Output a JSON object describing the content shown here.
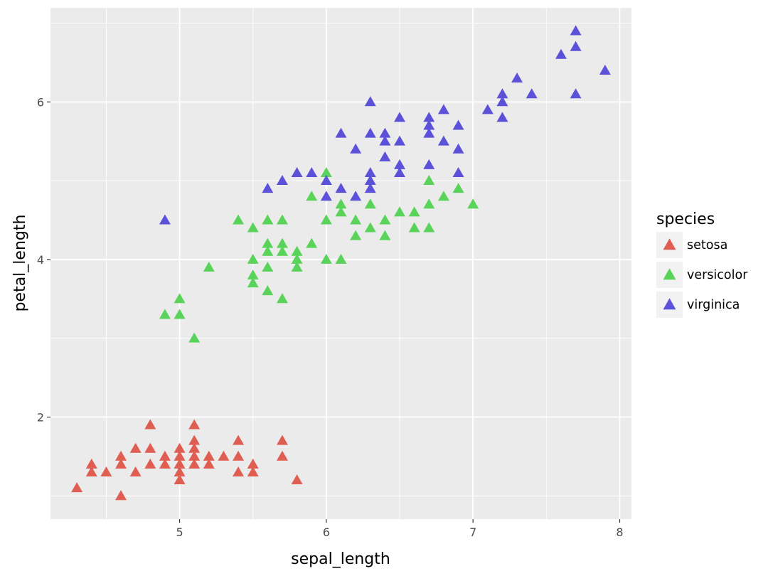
{
  "chart_data": {
    "type": "scatter",
    "xlabel": "sepal_length",
    "ylabel": "petal_length",
    "xlim": [
      4.12,
      8.08
    ],
    "ylim": [
      0.705,
      7.195
    ],
    "x_ticks": [
      5,
      6,
      7,
      8
    ],
    "y_ticks": [
      2,
      4,
      6
    ],
    "x_tick_labels": [
      "5",
      "6",
      "7",
      "8"
    ],
    "y_tick_labels": [
      "2",
      "4",
      "6"
    ],
    "grid": true,
    "marker": "triangle",
    "legend": {
      "title": "species",
      "placement": "right"
    },
    "series": [
      {
        "name": "setosa",
        "color": "#e05d52",
        "points": [
          [
            4.3,
            1.1
          ],
          [
            4.4,
            1.3
          ],
          [
            4.4,
            1.4
          ],
          [
            4.5,
            1.3
          ],
          [
            4.6,
            1.0
          ],
          [
            4.6,
            1.4
          ],
          [
            4.6,
            1.5
          ],
          [
            4.7,
            1.3
          ],
          [
            4.7,
            1.6
          ],
          [
            4.8,
            1.4
          ],
          [
            4.8,
            1.6
          ],
          [
            4.8,
            1.9
          ],
          [
            4.9,
            1.4
          ],
          [
            4.9,
            1.5
          ],
          [
            5.0,
            1.2
          ],
          [
            5.0,
            1.3
          ],
          [
            5.0,
            1.4
          ],
          [
            5.0,
            1.5
          ],
          [
            5.0,
            1.6
          ],
          [
            5.1,
            1.4
          ],
          [
            5.1,
            1.5
          ],
          [
            5.1,
            1.6
          ],
          [
            5.1,
            1.7
          ],
          [
            5.1,
            1.9
          ],
          [
            5.2,
            1.4
          ],
          [
            5.2,
            1.5
          ],
          [
            5.3,
            1.5
          ],
          [
            5.4,
            1.3
          ],
          [
            5.4,
            1.5
          ],
          [
            5.4,
            1.7
          ],
          [
            5.5,
            1.3
          ],
          [
            5.5,
            1.4
          ],
          [
            5.7,
            1.5
          ],
          [
            5.7,
            1.7
          ],
          [
            5.8,
            1.2
          ]
        ]
      },
      {
        "name": "versicolor",
        "color": "#5ad35a",
        "points": [
          [
            4.9,
            3.3
          ],
          [
            5.0,
            3.3
          ],
          [
            5.0,
            3.5
          ],
          [
            5.1,
            3.0
          ],
          [
            5.2,
            3.9
          ],
          [
            5.4,
            4.5
          ],
          [
            5.5,
            3.7
          ],
          [
            5.5,
            3.8
          ],
          [
            5.5,
            4.0
          ],
          [
            5.5,
            4.4
          ],
          [
            5.6,
            3.6
          ],
          [
            5.6,
            3.9
          ],
          [
            5.6,
            4.1
          ],
          [
            5.6,
            4.2
          ],
          [
            5.6,
            4.5
          ],
          [
            5.7,
            3.5
          ],
          [
            5.7,
            4.1
          ],
          [
            5.7,
            4.2
          ],
          [
            5.7,
            4.5
          ],
          [
            5.8,
            3.9
          ],
          [
            5.8,
            4.0
          ],
          [
            5.8,
            4.1
          ],
          [
            5.9,
            4.2
          ],
          [
            5.9,
            4.8
          ],
          [
            6.0,
            4.0
          ],
          [
            6.0,
            4.5
          ],
          [
            6.0,
            5.1
          ],
          [
            6.1,
            4.0
          ],
          [
            6.1,
            4.6
          ],
          [
            6.1,
            4.7
          ],
          [
            6.2,
            4.3
          ],
          [
            6.2,
            4.5
          ],
          [
            6.3,
            4.4
          ],
          [
            6.3,
            4.7
          ],
          [
            6.4,
            4.3
          ],
          [
            6.4,
            4.5
          ],
          [
            6.5,
            4.6
          ],
          [
            6.6,
            4.4
          ],
          [
            6.6,
            4.6
          ],
          [
            6.7,
            4.4
          ],
          [
            6.7,
            4.7
          ],
          [
            6.7,
            5.0
          ],
          [
            6.8,
            4.8
          ],
          [
            6.9,
            4.9
          ],
          [
            7.0,
            4.7
          ]
        ]
      },
      {
        "name": "virginica",
        "color": "#5c52da",
        "points": [
          [
            4.9,
            4.5
          ],
          [
            5.6,
            4.9
          ],
          [
            5.7,
            5.0
          ],
          [
            5.8,
            5.1
          ],
          [
            5.9,
            5.1
          ],
          [
            6.0,
            4.8
          ],
          [
            6.0,
            5.0
          ],
          [
            6.1,
            4.9
          ],
          [
            6.1,
            5.6
          ],
          [
            6.2,
            4.8
          ],
          [
            6.2,
            5.4
          ],
          [
            6.3,
            4.9
          ],
          [
            6.3,
            5.0
          ],
          [
            6.3,
            5.1
          ],
          [
            6.3,
            5.6
          ],
          [
            6.3,
            6.0
          ],
          [
            6.4,
            5.3
          ],
          [
            6.4,
            5.5
          ],
          [
            6.4,
            5.6
          ],
          [
            6.5,
            5.1
          ],
          [
            6.5,
            5.2
          ],
          [
            6.5,
            5.5
          ],
          [
            6.5,
            5.8
          ],
          [
            6.7,
            5.2
          ],
          [
            6.7,
            5.6
          ],
          [
            6.7,
            5.7
          ],
          [
            6.7,
            5.8
          ],
          [
            6.8,
            5.5
          ],
          [
            6.8,
            5.9
          ],
          [
            6.9,
            5.1
          ],
          [
            6.9,
            5.4
          ],
          [
            6.9,
            5.7
          ],
          [
            7.1,
            5.9
          ],
          [
            7.2,
            5.8
          ],
          [
            7.2,
            6.0
          ],
          [
            7.2,
            6.1
          ],
          [
            7.3,
            6.3
          ],
          [
            7.4,
            6.1
          ],
          [
            7.6,
            6.6
          ],
          [
            7.7,
            6.1
          ],
          [
            7.7,
            6.7
          ],
          [
            7.7,
            6.9
          ],
          [
            7.9,
            6.4
          ]
        ]
      }
    ]
  }
}
